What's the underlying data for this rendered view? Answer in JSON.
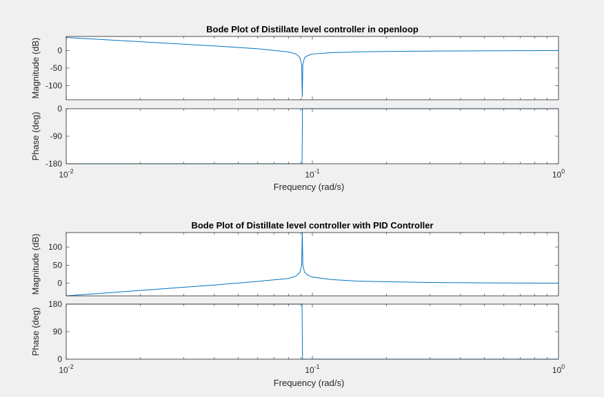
{
  "chart_data": [
    {
      "type": "line",
      "title": "Bode Plot of Distillate level controller in openloop",
      "xlabel": "Frequency  (rad/s)",
      "xscale": "log",
      "xlim": [
        0.01,
        1
      ],
      "color": "#0072bd",
      "magnitude": {
        "ylabel": "Magnitude (dB)",
        "ylim": [
          -140,
          40
        ],
        "yticks": [
          "0",
          "-50",
          "-100"
        ],
        "yticks_values": [
          0,
          -50,
          -100
        ],
        "x": [
          0.01,
          0.02,
          0.04,
          0.06,
          0.08,
          0.086,
          0.089,
          0.0905,
          0.091,
          0.0915,
          0.093,
          0.096,
          0.1,
          0.12,
          0.15,
          0.2,
          0.3,
          0.5,
          0.7,
          1.0
        ],
        "y": [
          37,
          25,
          13,
          5,
          -4,
          -10,
          -20,
          -40,
          -132,
          -40,
          -20,
          -14,
          -10,
          -6,
          -4,
          -2.5,
          -1.5,
          -0.8,
          -0.4,
          -0.2
        ]
      },
      "phase": {
        "ylabel": "Phase (deg)",
        "ylim": [
          -180,
          0
        ],
        "yticks": [
          "0",
          "-90",
          "-180"
        ],
        "yticks_values": [
          0,
          -90,
          -180
        ],
        "x": [
          0.01,
          0.0908,
          0.0912,
          1.0
        ],
        "y": [
          -180,
          -180,
          0,
          0
        ]
      },
      "xticks": [
        {
          "base": "10",
          "exp": "-2",
          "value": 0.01
        },
        {
          "base": "10",
          "exp": "-1",
          "value": 0.1
        },
        {
          "base": "10",
          "exp": "0",
          "value": 1
        }
      ]
    },
    {
      "type": "line",
      "title": "Bode Plot of Distillate level controller with PID Controller",
      "xlabel": "Frequency  (rad/s)",
      "xscale": "log",
      "xlim": [
        0.01,
        1
      ],
      "color": "#0072bd",
      "magnitude": {
        "ylabel": "Magnitude (dB)",
        "ylim": [
          -35,
          140
        ],
        "yticks": [
          "100",
          "50",
          "0"
        ],
        "yticks_values": [
          100,
          50,
          0
        ],
        "x": [
          0.01,
          0.02,
          0.04,
          0.06,
          0.08,
          0.086,
          0.089,
          0.0905,
          0.091,
          0.0915,
          0.093,
          0.096,
          0.1,
          0.12,
          0.15,
          0.2,
          0.3,
          0.5,
          0.7,
          1.0
        ],
        "y": [
          -35,
          -20,
          -5,
          5,
          13,
          20,
          30,
          50,
          140,
          50,
          30,
          22,
          17,
          10,
          6,
          4,
          2,
          1,
          0.5,
          0.2
        ]
      },
      "phase": {
        "ylabel": "Phase (deg)",
        "ylim": [
          0,
          180
        ],
        "yticks": [
          "180",
          "90",
          "0"
        ],
        "yticks_values": [
          180,
          90,
          0
        ],
        "x": [
          0.01,
          0.0908,
          0.0912,
          1.0
        ],
        "y": [
          180,
          180,
          0,
          0
        ]
      },
      "xticks": [
        {
          "base": "10",
          "exp": "-2",
          "value": 0.01
        },
        {
          "base": "10",
          "exp": "-1",
          "value": 0.1
        },
        {
          "base": "10",
          "exp": "0",
          "value": 1
        }
      ]
    }
  ]
}
